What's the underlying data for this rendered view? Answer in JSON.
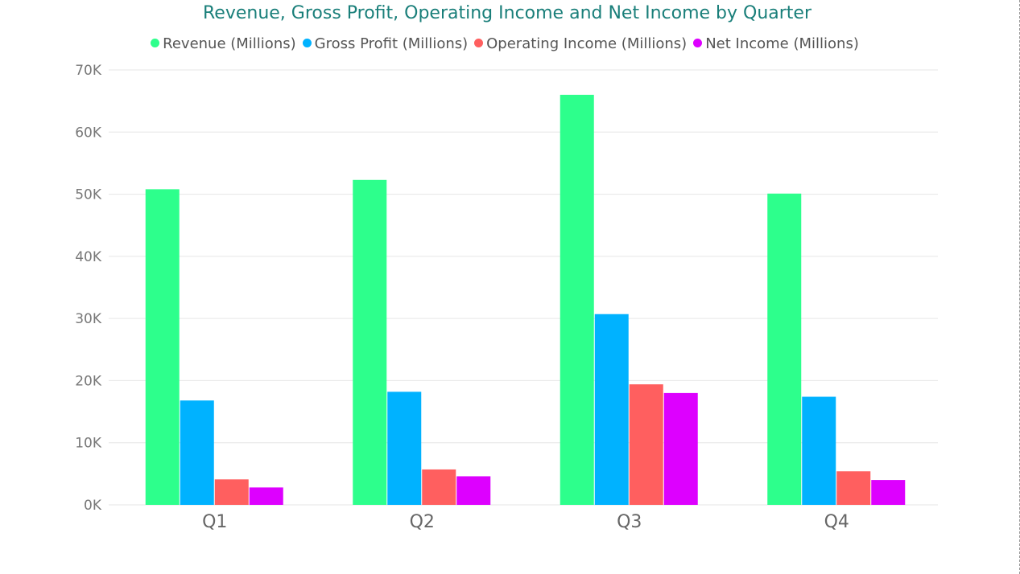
{
  "chart_data": {
    "type": "bar",
    "title": "Revenue, Gross Profit, Operating Income and Net Income by Quarter",
    "categories": [
      "Q1",
      "Q2",
      "Q3",
      "Q4"
    ],
    "series": [
      {
        "name": "Revenue (Millions)",
        "color": "#2dff8c",
        "values": [
          50800,
          52300,
          66000,
          50100
        ]
      },
      {
        "name": "Gross Profit (Millions)",
        "color": "#00b2ff",
        "values": [
          16800,
          18200,
          30700,
          17400
        ]
      },
      {
        "name": "Operating Income (Millions)",
        "color": "#ff5f5f",
        "values": [
          4100,
          5700,
          19400,
          5400
        ]
      },
      {
        "name": "Net Income (Millions)",
        "color": "#dd00ff",
        "values": [
          2800,
          4600,
          18000,
          4000
        ]
      }
    ],
    "ylim": [
      0,
      70000
    ],
    "yticks": [
      0,
      10000,
      20000,
      30000,
      40000,
      50000,
      60000,
      70000
    ],
    "ytick_labels": [
      "0K",
      "10K",
      "20K",
      "30K",
      "40K",
      "50K",
      "60K",
      "70K"
    ],
    "xlabel": "",
    "ylabel": "",
    "grid": true,
    "legend_position": "top"
  }
}
